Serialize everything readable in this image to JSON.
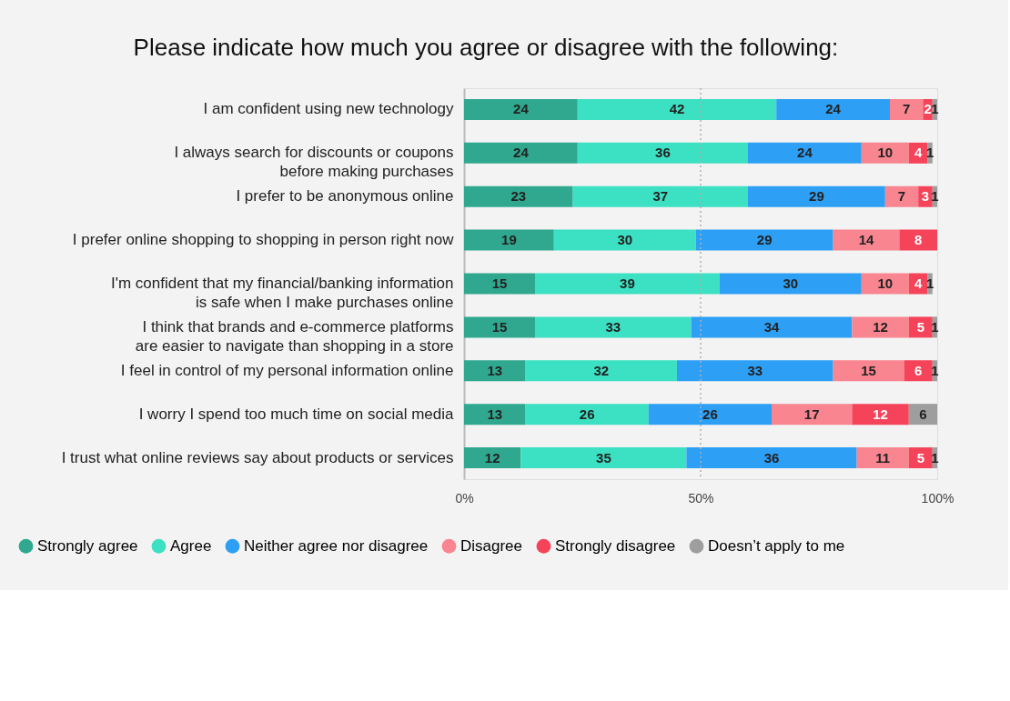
{
  "chart_data": {
    "type": "bar",
    "orientation": "horizontal",
    "stacked": true,
    "title": "Please indicate how much you agree or disagree with the following:",
    "categories": [
      "I am confident using new technology",
      "I always search for discounts or coupons\nbefore making purchases",
      "I prefer to be anonymous online",
      "I prefer online shopping to shopping in person right now",
      "I'm confident that my financial/banking information\nis safe when I make purchases online",
      "I think that brands and e-commerce platforms\nare easier to navigate than shopping in a store",
      "I feel in control of my personal information online",
      "I worry I spend too much time on social media",
      "I trust what online reviews say about products or services"
    ],
    "series": [
      {
        "name": "Strongly agree",
        "color": "#2fa88f",
        "values": [
          24,
          24,
          23,
          19,
          15,
          15,
          13,
          13,
          12
        ]
      },
      {
        "name": "Agree",
        "color": "#3ce0c2",
        "values": [
          42,
          36,
          37,
          30,
          39,
          33,
          32,
          26,
          35
        ]
      },
      {
        "name": "Neither agree nor disagree",
        "color": "#2d9ff5",
        "values": [
          24,
          24,
          29,
          29,
          30,
          34,
          33,
          26,
          36
        ]
      },
      {
        "name": "Disagree",
        "color": "#f8858f",
        "values": [
          7,
          10,
          7,
          14,
          10,
          12,
          15,
          17,
          11
        ]
      },
      {
        "name": "Strongly disagree",
        "color": "#f5435a",
        "values": [
          2,
          4,
          3,
          8,
          4,
          5,
          6,
          12,
          5
        ]
      },
      {
        "name": "Doesn’t apply to me",
        "color": "#9e9e9e",
        "values": [
          1,
          1,
          1,
          null,
          1,
          1,
          1,
          6,
          1
        ]
      }
    ],
    "xlim": [
      0,
      100
    ],
    "xticks": [
      {
        "value": 0,
        "label": "0%"
      },
      {
        "value": 50,
        "label": "50%"
      },
      {
        "value": 100,
        "label": "100%"
      }
    ],
    "ref_lines": [
      {
        "axis": "x",
        "value": 50,
        "line_style": "dotted",
        "color": "#b0b0b0"
      }
    ],
    "data_labels": true,
    "grid": false,
    "legend": "bottom"
  }
}
